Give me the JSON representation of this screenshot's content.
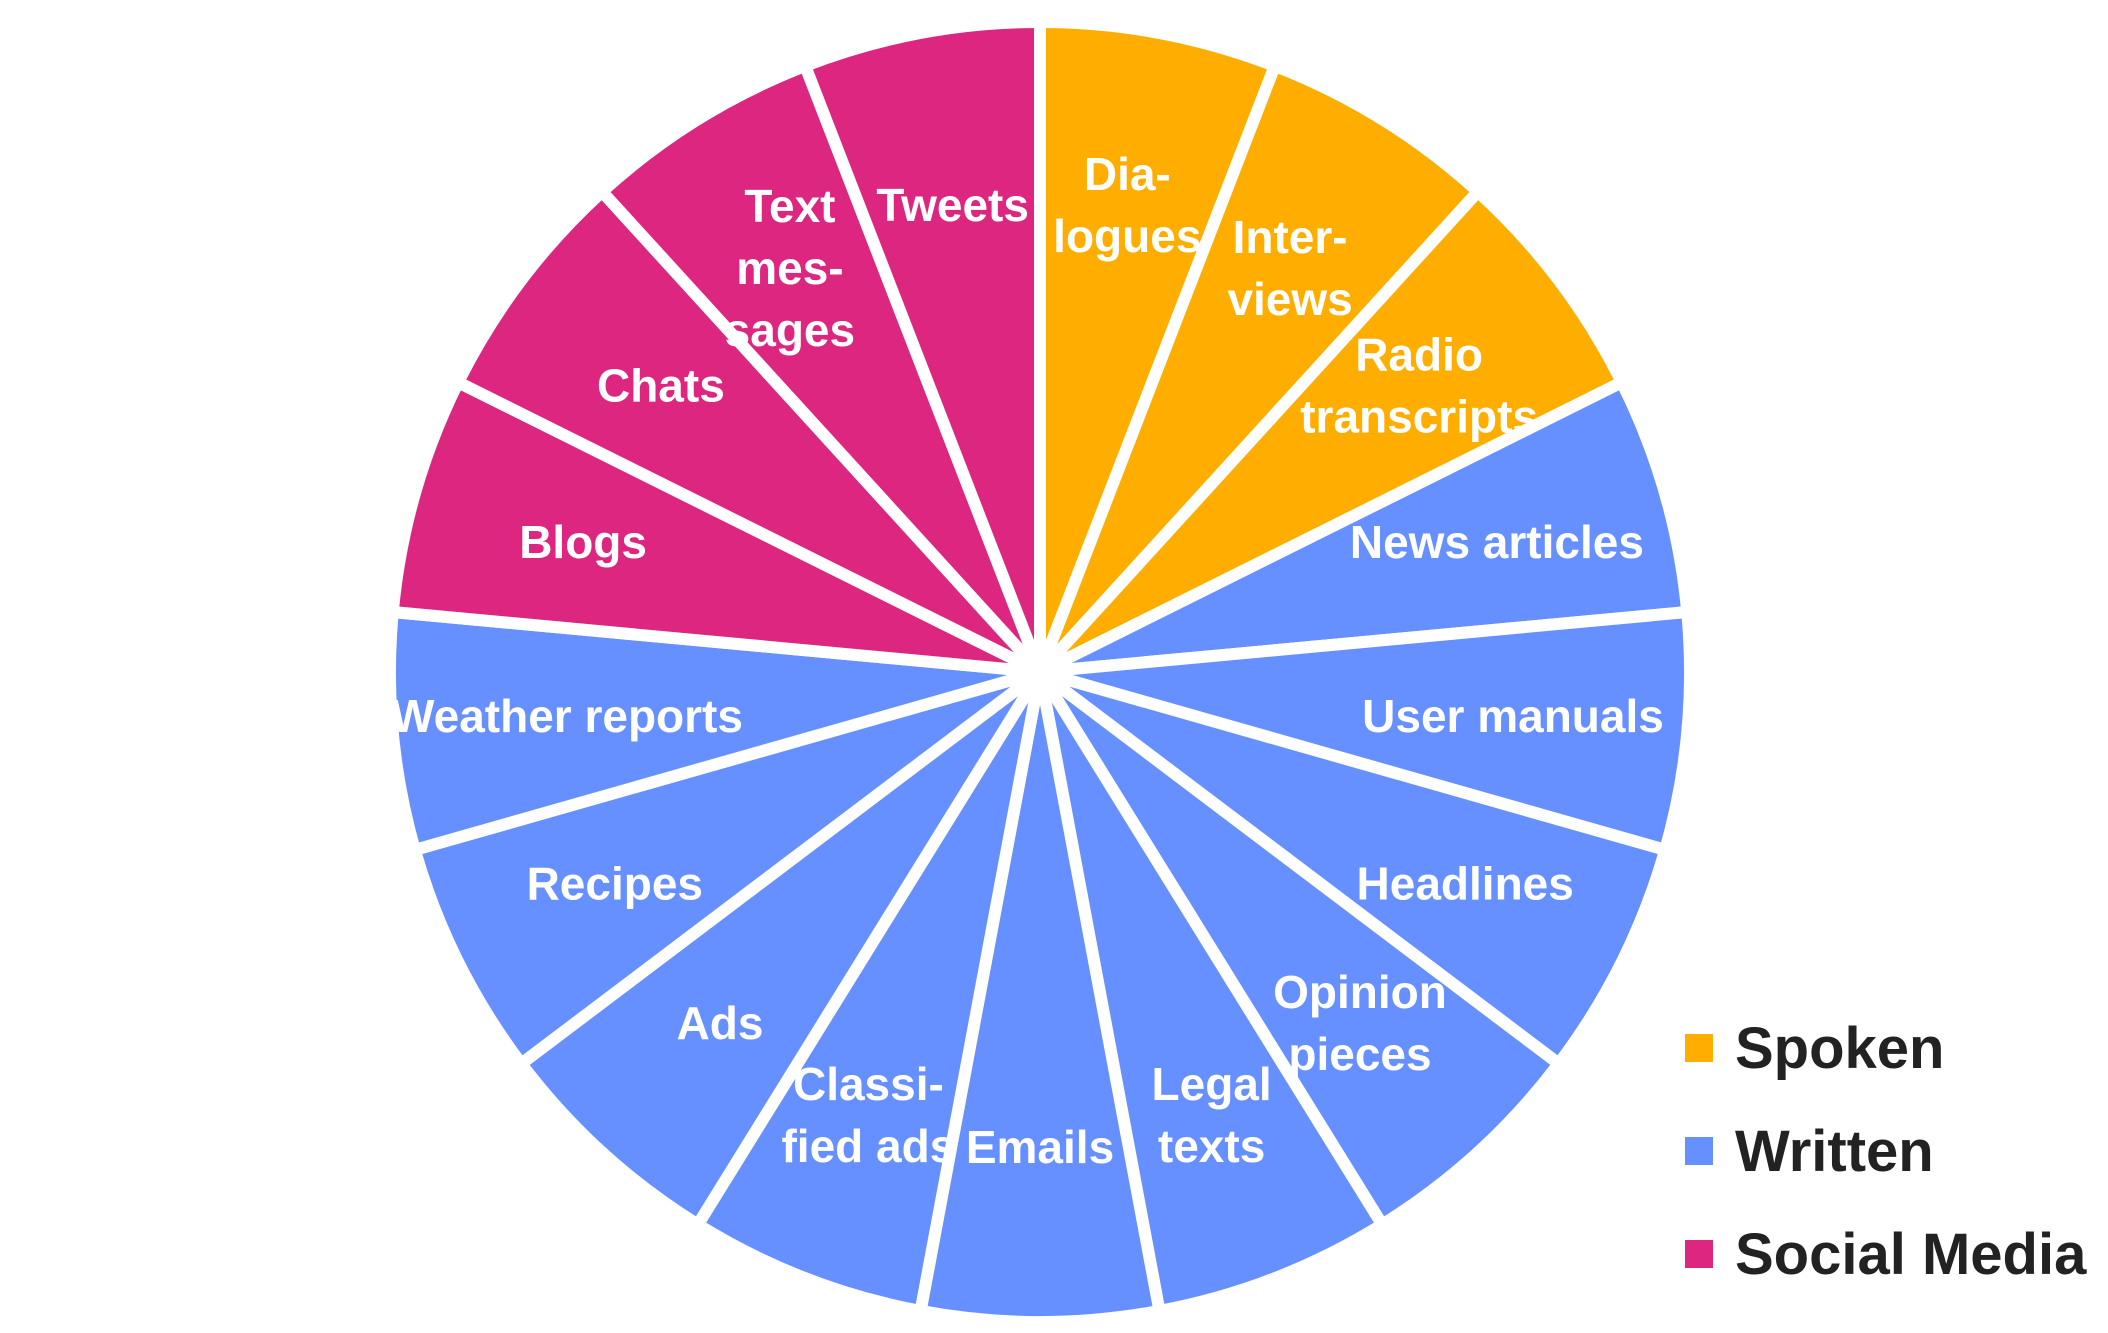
{
  "chart_data": {
    "type": "pie",
    "categories": [
      "Dia-\nlogues",
      "Inter-\nviews",
      "Radio\ntranscripts",
      "News articles",
      "User manuals",
      "Headlines",
      "Opinion\npieces",
      "Legal\ntexts",
      "Emails",
      "Classi-\nfied ads",
      "Ads",
      "Recipes",
      "Weather reports",
      "Blogs",
      "Chats",
      "Text\nmes-\nsages",
      "Tweets"
    ],
    "values": [
      1,
      1,
      1,
      1,
      1,
      1,
      1,
      1,
      1,
      1,
      1,
      1,
      1,
      1,
      1,
      1,
      1
    ],
    "groups": [
      "Spoken",
      "Spoken",
      "Spoken",
      "Written",
      "Written",
      "Written",
      "Written",
      "Written",
      "Written",
      "Written",
      "Written",
      "Written",
      "Written",
      "Social Media",
      "Social Media",
      "Social Media",
      "Social Media"
    ],
    "legend": [
      {
        "name": "Spoken",
        "color": "#FFAE00"
      },
      {
        "name": "Written",
        "color": "#6690FF"
      },
      {
        "name": "Social Media",
        "color": "#DC267F"
      }
    ],
    "legend_position": "bottom-right",
    "slice_label_color": "#FFFFFF"
  }
}
